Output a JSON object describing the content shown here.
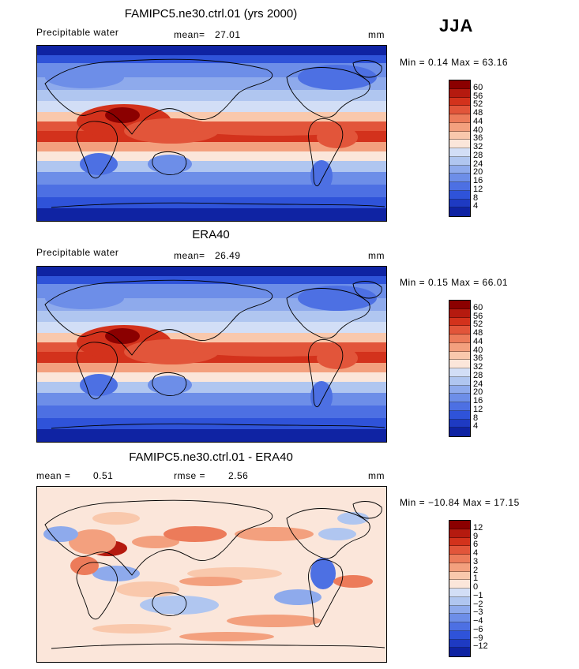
{
  "season": "JJA",
  "panels": [
    {
      "title": "FAMIPC5.ne30.ctrl.01 (yrs 2000)",
      "left_label": "Precipitable water",
      "stat1_label": "mean=",
      "stat1_value": "27.01",
      "stat2_label": "",
      "stat2_value": "",
      "units": "mm",
      "minmax": "Min =   0.14  Max =  63.16",
      "legend_labels": [
        "60",
        "56",
        "52",
        "48",
        "44",
        "40",
        "36",
        "32",
        "28",
        "24",
        "20",
        "16",
        "12",
        "8",
        "4"
      ],
      "colors": [
        "#8b0000",
        "#b51a0f",
        "#d3321c",
        "#e2553a",
        "#ec7b5a",
        "#f3a07e",
        "#f9c8ac",
        "#fbe6da",
        "#d2def6",
        "#b0c6f0",
        "#8eaaec",
        "#6d8ee8",
        "#4d70e3",
        "#2f53d9",
        "#1e3ac2",
        "#0f23a3"
      ],
      "kind": "abs"
    },
    {
      "title": "ERA40",
      "left_label": "Precipitable water",
      "stat1_label": "mean=",
      "stat1_value": "26.49",
      "stat2_label": "",
      "stat2_value": "",
      "units": "mm",
      "minmax": "Min =   0.15  Max =  66.01",
      "legend_labels": [
        "60",
        "56",
        "52",
        "48",
        "44",
        "40",
        "36",
        "32",
        "28",
        "24",
        "20",
        "16",
        "12",
        "8",
        "4"
      ],
      "colors": [
        "#8b0000",
        "#b51a0f",
        "#d3321c",
        "#e2553a",
        "#ec7b5a",
        "#f3a07e",
        "#f9c8ac",
        "#fbe6da",
        "#d2def6",
        "#b0c6f0",
        "#8eaaec",
        "#6d8ee8",
        "#4d70e3",
        "#2f53d9",
        "#1e3ac2",
        "#0f23a3"
      ],
      "kind": "abs"
    },
    {
      "title": "FAMIPC5.ne30.ctrl.01 - ERA40",
      "left_label": "",
      "stat1_label": "mean =",
      "stat1_value": "0.51",
      "stat2_label": "rmse =",
      "stat2_value": "2.56",
      "units": "mm",
      "minmax": "Min = −10.84  Max =  17.15",
      "legend_labels": [
        "12",
        "9",
        "6",
        "4",
        "3",
        "2",
        "1",
        "0",
        "−1",
        "−2",
        "−3",
        "−4",
        "−6",
        "−9",
        "−12"
      ],
      "colors": [
        "#8b0000",
        "#b51a0f",
        "#d3321c",
        "#e2553a",
        "#ec7b5a",
        "#f3a07e",
        "#f9c8ac",
        "#fbe6da",
        "#d2def6",
        "#b0c6f0",
        "#8eaaec",
        "#6d8ee8",
        "#4d70e3",
        "#2f53d9",
        "#1e3ac2",
        "#0f23a3"
      ],
      "kind": "diff"
    }
  ]
}
